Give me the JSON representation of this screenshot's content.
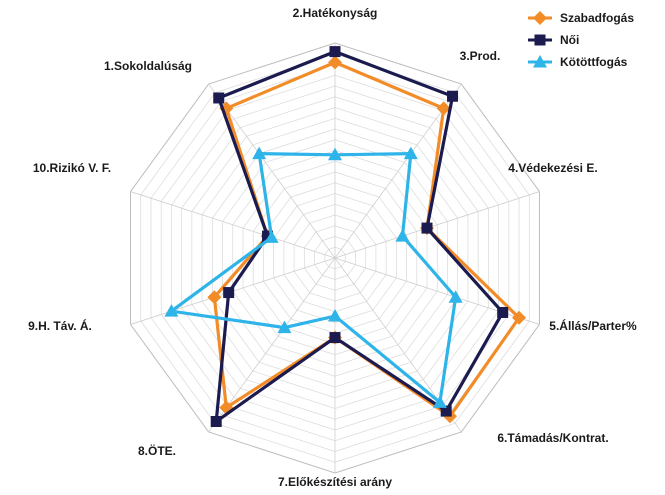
{
  "chart_data": {
    "type": "radar",
    "axes": [
      "1.Sokoldalúság",
      "2.Hatékonyság",
      "3.Prod.",
      "4.Védekezési E.",
      "5.Állás/Parter%",
      "6.Támadás/Kontrat.",
      "7.Előkészítési arány",
      "8.ÖTE.",
      "9.H. Táv. Á.",
      "10.Rizikó V. F."
    ],
    "rlim": [
      0,
      1
    ],
    "grid": true,
    "legend_position": "top-right",
    "series": [
      {
        "name": "Szabadfogás",
        "color": "#F28C28",
        "marker": "diamond",
        "values": [
          0.86,
          0.91,
          0.86,
          0.45,
          0.9,
          0.91,
          0.37,
          0.86,
          0.59,
          0.33
        ]
      },
      {
        "name": "Női",
        "color": "#1B1B4F",
        "marker": "square",
        "values": [
          0.92,
          0.96,
          0.93,
          0.45,
          0.82,
          0.88,
          0.37,
          0.94,
          0.52,
          0.33
        ]
      },
      {
        "name": "Kötöttfogás",
        "color": "#2EB4E8",
        "marker": "triangle",
        "values": [
          0.6,
          0.48,
          0.6,
          0.33,
          0.59,
          0.83,
          0.27,
          0.4,
          0.8,
          0.31
        ]
      }
    ]
  }
}
